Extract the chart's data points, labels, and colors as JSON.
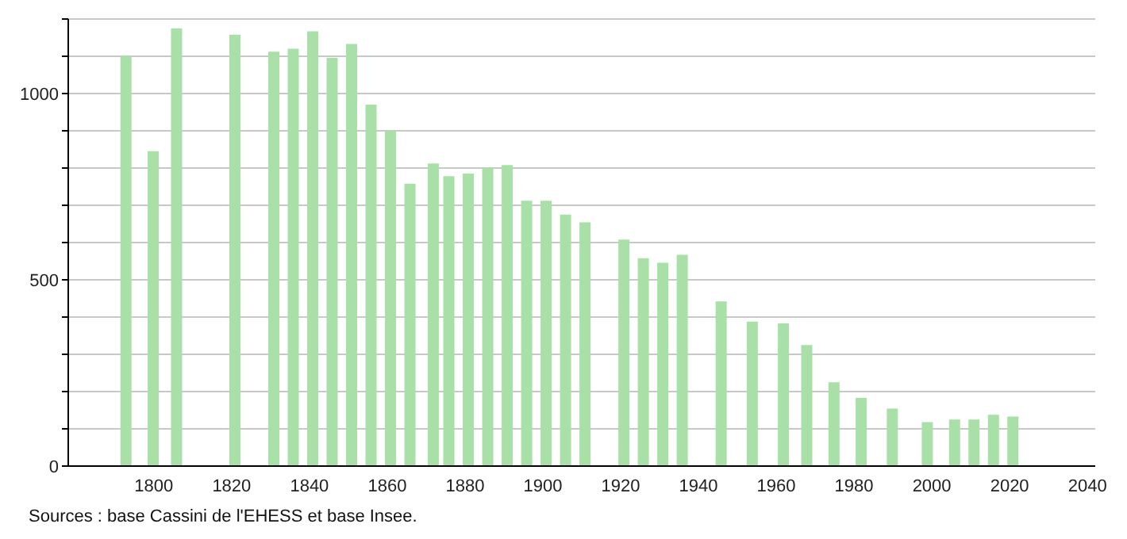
{
  "chart_data": {
    "type": "bar",
    "x": [
      1793,
      1800,
      1806,
      1821,
      1831,
      1836,
      1841,
      1846,
      1851,
      1856,
      1861,
      1866,
      1872,
      1876,
      1881,
      1886,
      1891,
      1896,
      1901,
      1906,
      1911,
      1921,
      1926,
      1931,
      1936,
      1946,
      1954,
      1962,
      1968,
      1975,
      1982,
      1990,
      1999,
      2006,
      2011,
      2016,
      2021
    ],
    "values": [
      1100,
      845,
      1175,
      1158,
      1112,
      1120,
      1167,
      1096,
      1133,
      970,
      900,
      758,
      812,
      778,
      785,
      800,
      808,
      712,
      712,
      675,
      654,
      608,
      558,
      546,
      567,
      442,
      388,
      383,
      325,
      225,
      183,
      154,
      118,
      125,
      125,
      138,
      133
    ],
    "color": "#a8e0a8",
    "xlim": [
      1778,
      2042
    ],
    "xticks": [
      1800,
      1820,
      1840,
      1860,
      1880,
      1900,
      1920,
      1940,
      1960,
      1980,
      2000,
      2020,
      2040
    ],
    "ylim": [
      0,
      1200
    ],
    "yticks": [
      0,
      {
        "value": 100,
        "label": null
      },
      {
        "value": 200,
        "label": null
      },
      {
        "value": 300,
        "label": null
      },
      {
        "value": 400,
        "label": null
      },
      500,
      {
        "value": 600,
        "label": null
      },
      {
        "value": 700,
        "label": null
      },
      {
        "value": 800,
        "label": null
      },
      {
        "value": 900,
        "label": null
      },
      1000,
      {
        "value": 1100,
        "label": null
      },
      {
        "value": 1200,
        "label": null
      }
    ],
    "grid": "y",
    "annotations": [
      "Sources : base Cassini de l'EHESS et base Insee."
    ]
  }
}
